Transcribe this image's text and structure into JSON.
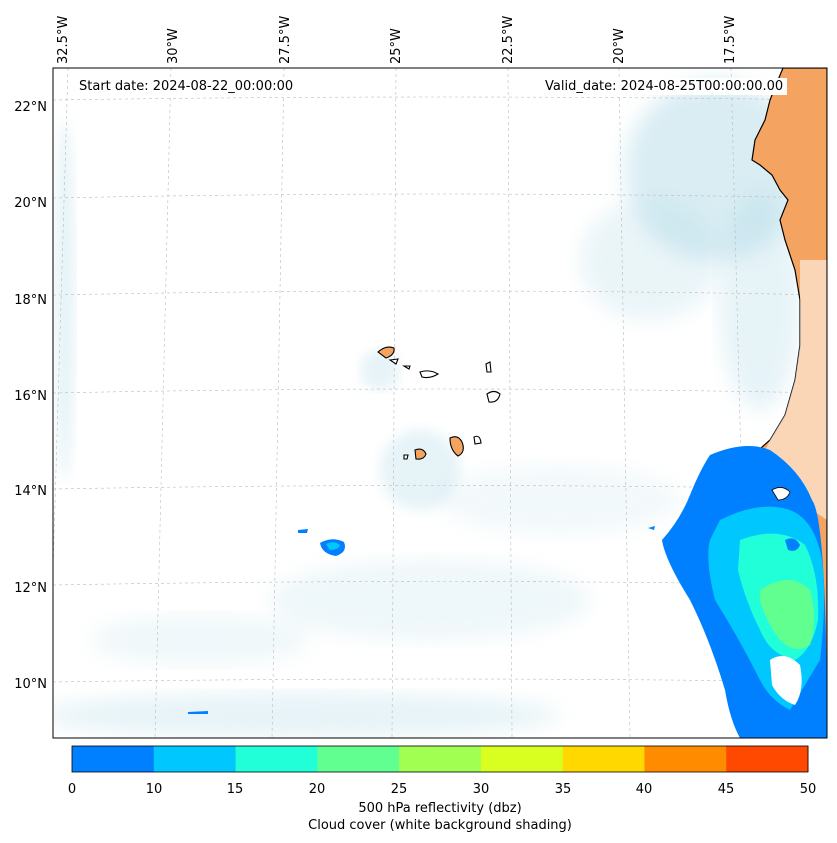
{
  "map": {
    "start_date_label": "Start date: 2024-08-22_00:00:00",
    "valid_date_label": "Valid_date: 2024-08-25T00:00:00.00",
    "lon_labels": [
      "32.5°W",
      "30°W",
      "27.5°W",
      "25°W",
      "22.5°W",
      "20°W",
      "17.5°W"
    ],
    "lat_labels": [
      "22°N",
      "20°N",
      "18°N",
      "16°N",
      "14°N",
      "12°N",
      "10°N"
    ],
    "extent": {
      "lon_min": -33,
      "lon_max": -15.5,
      "lat_min": 9,
      "lat_max": 22.5
    },
    "land_color": "#f4a460",
    "cloud_color": "#add8e6",
    "coast_color": "#000000"
  },
  "colorbar": {
    "tick_labels": [
      "0",
      "10",
      "15",
      "20",
      "25",
      "30",
      "35",
      "40",
      "45",
      "50"
    ],
    "colors": [
      "#0080ff",
      "#00c8ff",
      "#20ffd8",
      "#60ff90",
      "#a0ff50",
      "#d8ff20",
      "#ffd800",
      "#ff8c00",
      "#ff4800"
    ],
    "label_line1": "500 hPa reflectivity (dbz)",
    "label_line2": "Cloud cover (white background shading)"
  }
}
